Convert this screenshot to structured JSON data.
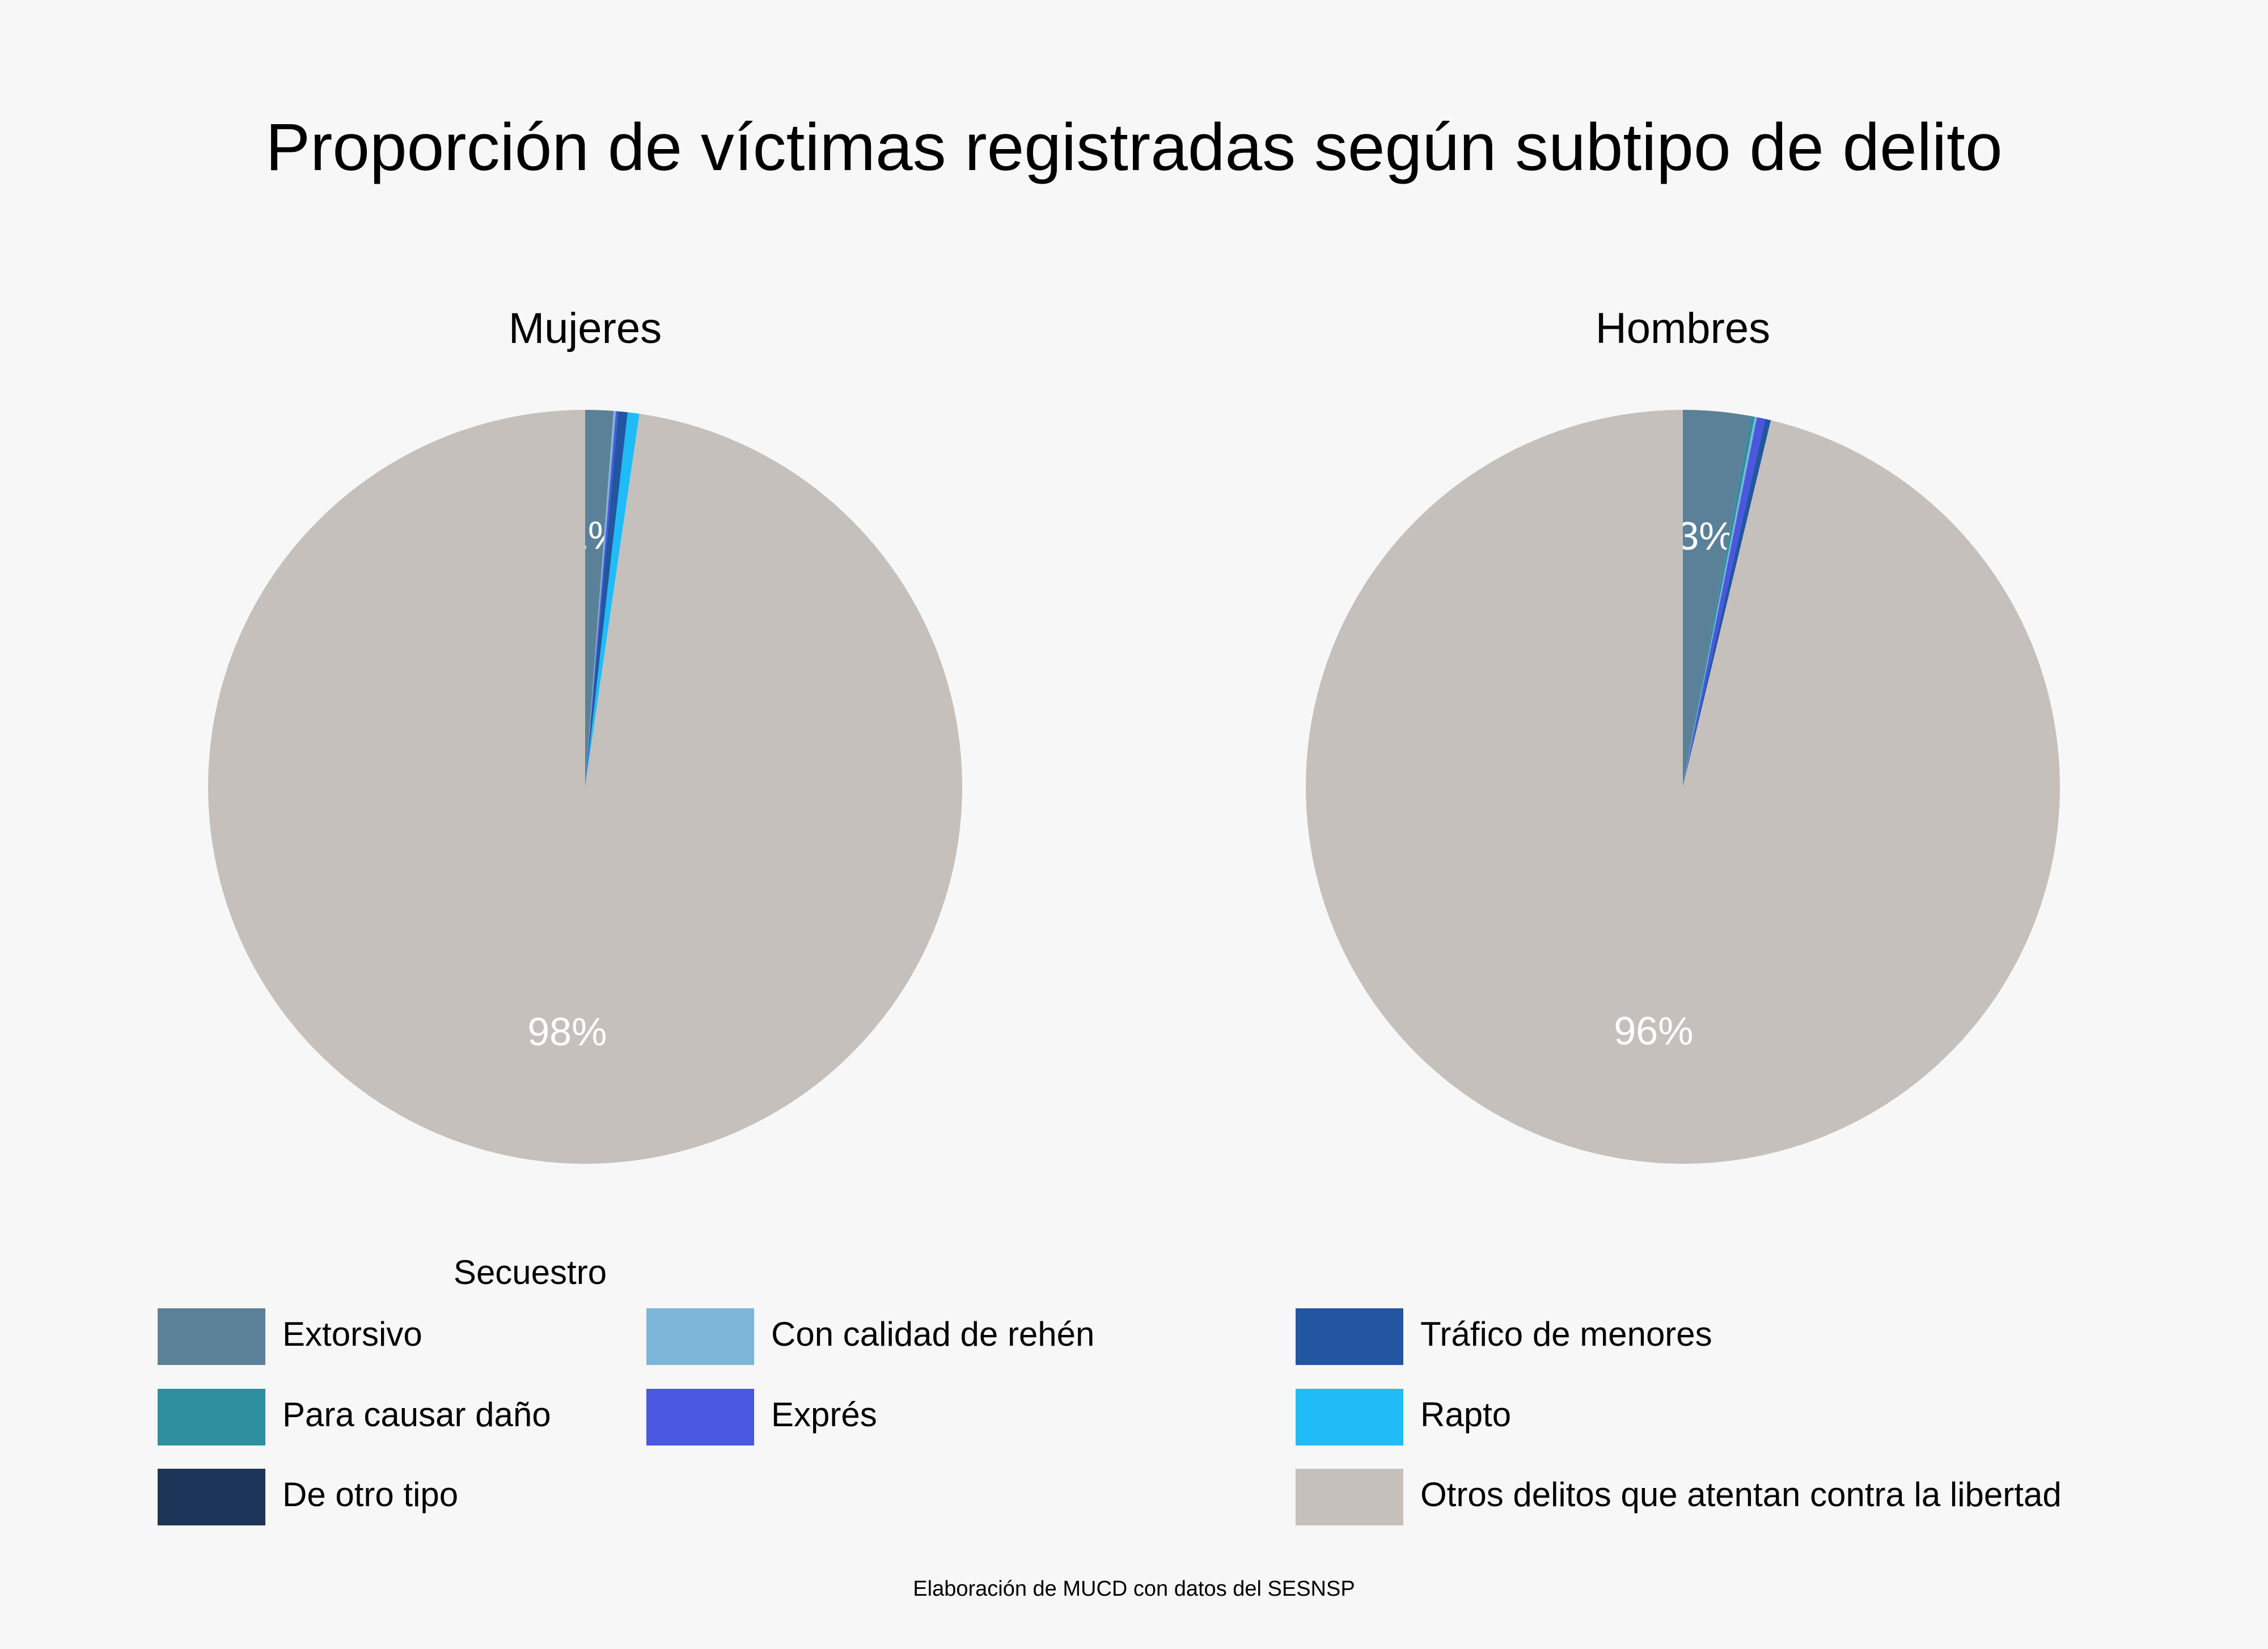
{
  "chart_data": {
    "type": "pie",
    "title": "Proporción de víctimas registradas según subtipo de delito",
    "legend_title": "Secuestro",
    "source": "Elaboración de MUCD con datos del SESNSP",
    "legend_placement": "bottom",
    "categories": [
      {
        "name": "Extorsivo",
        "color": "#5b8199"
      },
      {
        "name": "Para causar daño",
        "color": "#2e8f9e"
      },
      {
        "name": "De otro tipo",
        "color": "#1c3558"
      },
      {
        "name": "Con calidad de rehén",
        "color": "#7db5d8"
      },
      {
        "name": "Exprés",
        "color": "#4a57e0"
      },
      {
        "name": "Tráfico de menores",
        "color": "#2256a1"
      },
      {
        "name": "Rapto",
        "color": "#1fbcf7"
      },
      {
        "name": "Otros delitos que atentan contra la libertad",
        "color": "#c5c0bb"
      }
    ],
    "pies": [
      {
        "name": "Mujeres",
        "slices": [
          {
            "category": "Extorsivo",
            "value": 1.2,
            "label": "1%"
          },
          {
            "category": "Para causar daño",
            "value": 0.0
          },
          {
            "category": "De otro tipo",
            "value": 0.0
          },
          {
            "category": "Con calidad de rehén",
            "value": 0.1
          },
          {
            "category": "Exprés",
            "value": 0.1
          },
          {
            "category": "Tráfico de menores",
            "value": 0.4
          },
          {
            "category": "Rapto",
            "value": 0.5
          },
          {
            "category": "Otros delitos que atentan contra la libertad",
            "value": 97.7,
            "label": "98%"
          }
        ]
      },
      {
        "name": "Hombres",
        "slices": [
          {
            "category": "Extorsivo",
            "value": 2.9,
            "label": "3%"
          },
          {
            "category": "Para causar daño",
            "value": 0.15
          },
          {
            "category": "De otro tipo",
            "value": 0.0
          },
          {
            "category": "Con calidad de rehén",
            "value": 0.1
          },
          {
            "category": "Exprés",
            "value": 0.35
          },
          {
            "category": "Tráfico de menores",
            "value": 0.25
          },
          {
            "category": "Rapto",
            "value": 0.0
          },
          {
            "category": "Otros delitos que atentan contra la libertad",
            "value": 96.25,
            "label": "96%"
          }
        ]
      }
    ]
  }
}
